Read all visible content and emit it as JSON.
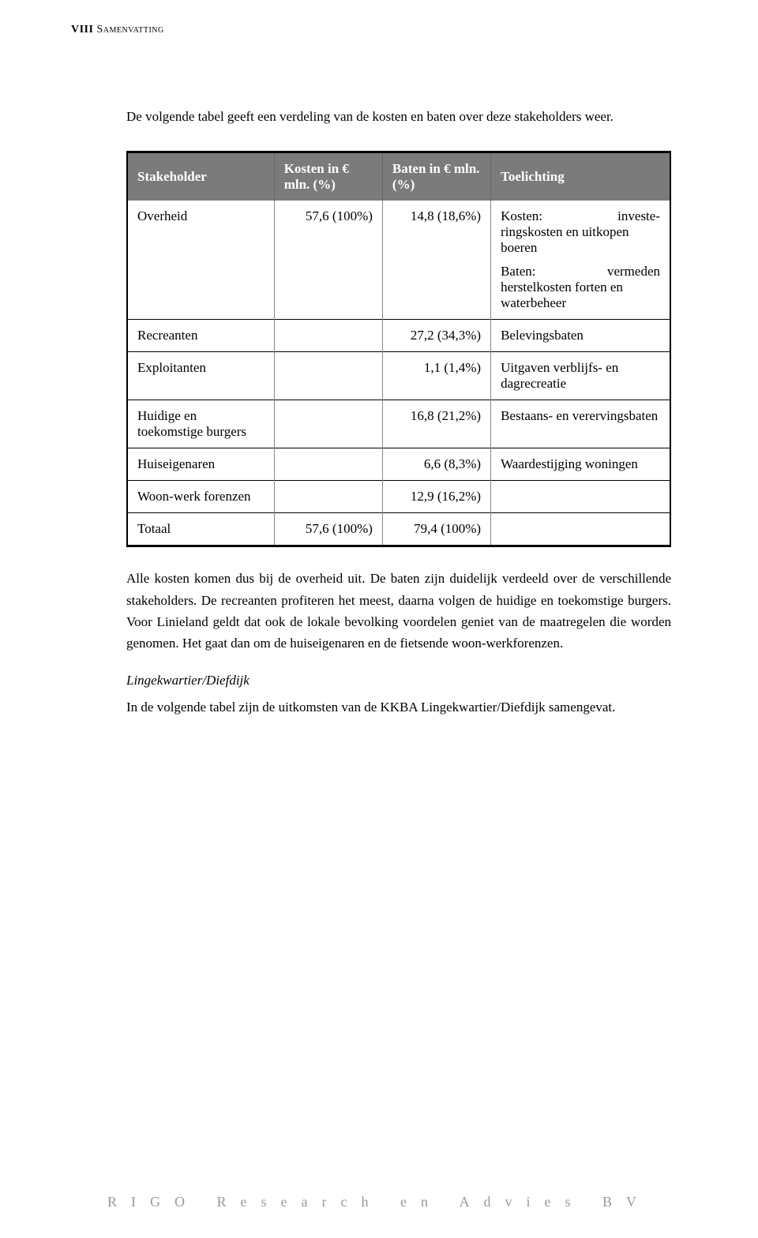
{
  "header": {
    "roman": "VIII",
    "title": "Samenvatting"
  },
  "intro": "De volgende tabel geeft een verdeling van de kosten en baten over deze stakeholders weer.",
  "table": {
    "headers": {
      "stake": "Stakeholder",
      "kosten": "Kosten in € mln. (%)",
      "baten": "Baten in € mln. (%)",
      "toel": "Toelichting"
    },
    "rows": [
      {
        "stake": "Overheid",
        "kosten": "57,6 (100%)",
        "baten": "14,8 (18,6%)",
        "toel_k_label": "Kosten:",
        "toel_k_right": "investe-",
        "toel_k_body": "ringskosten en uitkopen boeren",
        "toel_b_label": "Baten:",
        "toel_b_right": "vermeden",
        "toel_b_body": "herstelkosten forten en waterbeheer"
      },
      {
        "stake": "Recreanten",
        "kosten": "",
        "baten": "27,2 (34,3%)",
        "toel": "Belevingsbaten"
      },
      {
        "stake": "Exploitanten",
        "kosten": "",
        "baten": "1,1 (1,4%)",
        "toel": "Uitgaven verblijfs- en dagrecreatie"
      },
      {
        "stake": "Huidige en toekomstige burgers",
        "kosten": "",
        "baten": "16,8 (21,2%)",
        "toel": "Bestaans- en verervingsbaten"
      },
      {
        "stake": "Huiseigenaren",
        "kosten": "",
        "baten": "6,6 (8,3%)",
        "toel": "Waardestijging woningen"
      },
      {
        "stake": "Woon-werk forenzen",
        "kosten": "",
        "baten": "12,9 (16,2%)",
        "toel": ""
      },
      {
        "stake": "Totaal",
        "kosten": "57,6 (100%)",
        "baten": "79,4 (100%)",
        "toel": ""
      }
    ]
  },
  "para1": "Alle kosten komen dus bij de overheid uit. De baten zijn duidelijk verdeeld over de verschillende stakeholders. De recreanten profiteren het meest, daarna volgen de huidige en toekomstige burgers. Voor Linieland geldt dat ook de lokale bevolking voordelen geniet van de maatregelen die worden genomen. Het gaat dan om de huiseigenaren en de fietsende woon-werkforenzen.",
  "subhead": "Lingekwartier/Diefdijk",
  "para2": "In de volgende tabel zijn de uitkomsten van de KKBA Lingekwartier/Diefdijk samengevat.",
  "footer": "RIGO Research en Advies BV"
}
